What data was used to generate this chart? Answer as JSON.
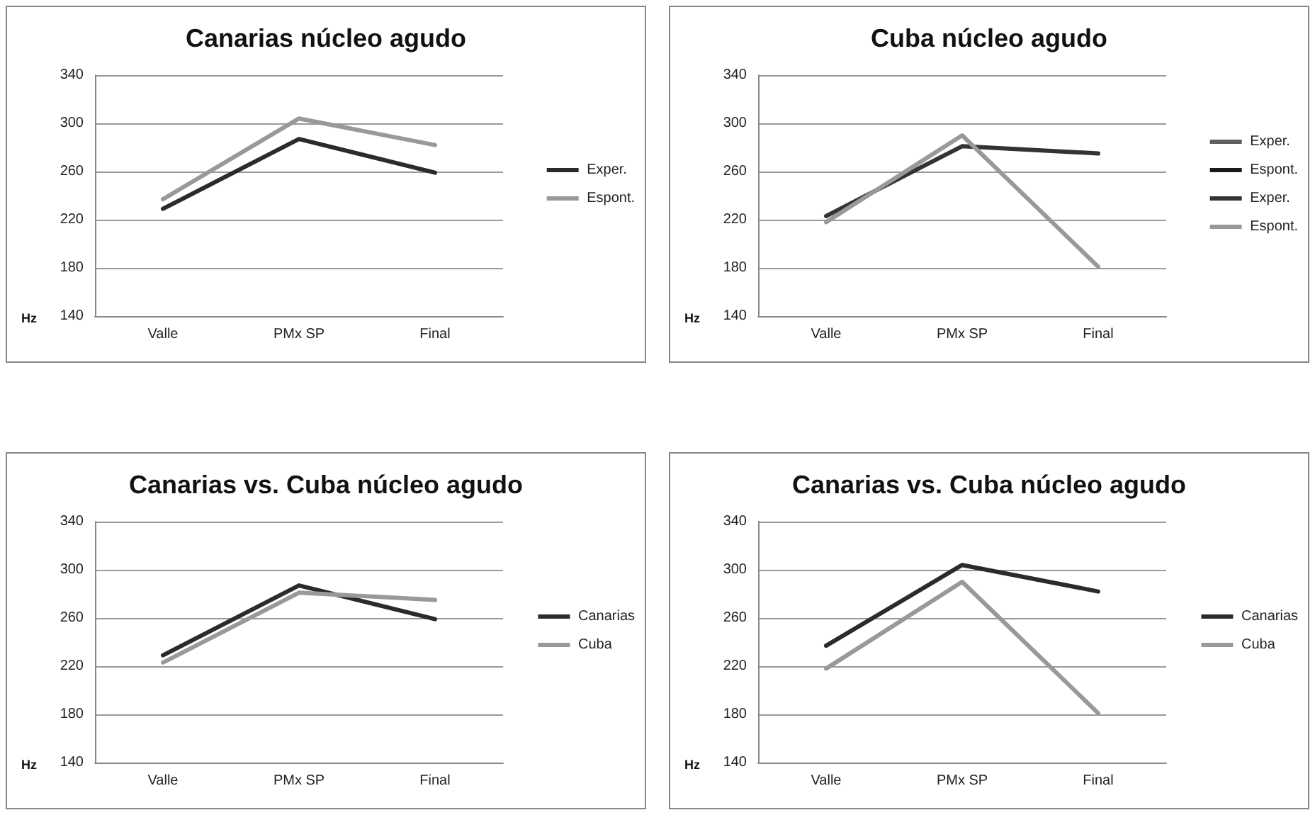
{
  "chart_data": [
    {
      "type": "line",
      "title": "Canarias núcleo agudo",
      "ylabel": "Hz",
      "categories": [
        "Valle",
        "PMx SP",
        "Final"
      ],
      "ylim": [
        140,
        340
      ],
      "yticks": [
        140,
        180,
        220,
        260,
        300,
        340
      ],
      "grid": "y",
      "legend": "right",
      "marker": "none",
      "line_style": "solid",
      "series": [
        {
          "name": "Exper.",
          "color": "#2b2b2b",
          "values": [
            229,
            287,
            259
          ]
        },
        {
          "name": "Espont.",
          "color": "#999999",
          "values": [
            237,
            304,
            282
          ]
        }
      ]
    },
    {
      "type": "line",
      "title": "Cuba núcleo agudo",
      "ylabel": "Hz",
      "categories": [
        "Valle",
        "PMx SP",
        "Final"
      ],
      "ylim": [
        140,
        340
      ],
      "yticks": [
        140,
        180,
        220,
        260,
        300,
        340
      ],
      "grid": "y",
      "legend": "right",
      "marker": "none",
      "line_style": "solid",
      "series": [
        {
          "name": "Exper.",
          "color": "#606060",
          "values": [
            null,
            null,
            null
          ]
        },
        {
          "name": "Espont.",
          "color": "#1a1a1a",
          "values": [
            null,
            null,
            null
          ]
        },
        {
          "name": "Exper.",
          "color": "#333333",
          "values": [
            223,
            281,
            275
          ]
        },
        {
          "name": "Espont.",
          "color": "#999999",
          "values": [
            218,
            290,
            181
          ]
        }
      ]
    },
    {
      "type": "line",
      "title": "Canarias vs. Cuba núcleo agudo",
      "ylabel": "Hz",
      "categories": [
        "Valle",
        "PMx SP",
        "Final"
      ],
      "ylim": [
        140,
        340
      ],
      "yticks": [
        140,
        180,
        220,
        260,
        300,
        340
      ],
      "grid": "y",
      "legend": "right",
      "marker": "none",
      "line_style": "solid",
      "series": [
        {
          "name": "Canarias",
          "color": "#2b2b2b",
          "values": [
            229,
            287,
            259
          ]
        },
        {
          "name": "Cuba",
          "color": "#999999",
          "values": [
            223,
            281,
            275
          ]
        }
      ]
    },
    {
      "type": "line",
      "title": "Canarias vs. Cuba núcleo agudo",
      "ylabel": "Hz",
      "categories": [
        "Valle",
        "PMx SP",
        "Final"
      ],
      "ylim": [
        140,
        340
      ],
      "yticks": [
        140,
        180,
        220,
        260,
        300,
        340
      ],
      "grid": "y",
      "legend": "right",
      "marker": "none",
      "line_style": "solid",
      "series": [
        {
          "name": "Canarias",
          "color": "#2b2b2b",
          "values": [
            237,
            304,
            282
          ]
        },
        {
          "name": "Cuba",
          "color": "#999999",
          "values": [
            218,
            290,
            181
          ]
        }
      ]
    }
  ]
}
